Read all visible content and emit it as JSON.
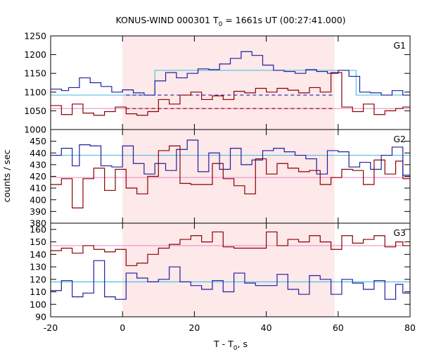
{
  "chart_data": {
    "type": "line",
    "title": "KONUS-WIND 000301 T",
    "title_sub": "0",
    "title_rest": " = 1661s UT (00:27:41.000)",
    "xlabel_main": "T - T",
    "xlabel_sub": "0",
    "xlabel_rest": ", s",
    "ylabel": "counts / sec",
    "xlim": [
      -20,
      80
    ],
    "x_ticks": [
      -20,
      0,
      20,
      40,
      60,
      80
    ],
    "interval": [
      0,
      59
    ],
    "colors": {
      "blue": "#1f1f9f",
      "red": "#8b0000",
      "cyan": "#54c0e0",
      "pink": "#ee90c8",
      "shade": "#fde8ea"
    },
    "panels": [
      {
        "label": "G1",
        "ylim": [
          1000,
          1250
        ],
        "y_ticks": [
          1000,
          1050,
          1100,
          1150,
          1200,
          1250
        ],
        "blue_edges": [
          -20,
          -17,
          -15,
          -12,
          -9,
          -6,
          -3,
          0,
          3,
          6,
          9,
          12,
          15,
          18,
          21,
          24,
          27,
          30,
          33,
          36,
          39,
          42,
          45,
          48,
          51,
          54,
          57,
          60,
          63,
          66,
          69,
          72,
          75,
          78,
          80
        ],
        "blue_values": [
          1108,
          1104,
          1112,
          1138,
          1125,
          1115,
          1100,
          1106,
          1098,
          1092,
          1130,
          1152,
          1138,
          1150,
          1162,
          1160,
          1175,
          1190,
          1208,
          1198,
          1172,
          1158,
          1155,
          1150,
          1160,
          1155,
          1150,
          1158,
          1142,
          1100,
          1098,
          1092,
          1104,
          1092
        ],
        "red_edges": [
          -20,
          -17,
          -14,
          -11,
          -8,
          -5,
          -2,
          1,
          4,
          7,
          10,
          13,
          16,
          19,
          22,
          25,
          28,
          31,
          34,
          37,
          40,
          43,
          46,
          49,
          52,
          55,
          58,
          61,
          64,
          67,
          70,
          73,
          76,
          78,
          80
        ],
        "red_values": [
          1064,
          1040,
          1068,
          1044,
          1038,
          1048,
          1060,
          1042,
          1038,
          1048,
          1080,
          1068,
          1092,
          1100,
          1080,
          1090,
          1080,
          1102,
          1098,
          1110,
          1100,
          1110,
          1105,
          1098,
          1112,
          1100,
          1152,
          1060,
          1048,
          1068,
          1040,
          1050,
          1056,
          1060
        ],
        "cyan_level": 1092,
        "cyan_box": {
          "x0": 9,
          "x1": 65,
          "level": 1158
        },
        "cyan_dash": {
          "x0": 60,
          "x1": 80,
          "level": 1092
        },
        "pink_level": 1056,
        "red_dash": {
          "x0": 1,
          "x1": 59,
          "level": 1056
        },
        "blue_dash": {
          "x0": 1,
          "x1": 59,
          "level": 1092
        }
      },
      {
        "label": "G2",
        "ylim": [
          380,
          460
        ],
        "y_ticks": [
          380,
          390,
          400,
          410,
          420,
          430,
          440,
          450
        ],
        "blue_edges": [
          -20,
          -17,
          -14,
          -12,
          -9,
          -6,
          -3,
          0,
          3,
          6,
          9,
          12,
          15,
          18,
          21,
          24,
          27,
          30,
          33,
          36,
          39,
          42,
          45,
          48,
          51,
          54,
          57,
          60,
          63,
          66,
          69,
          72,
          75,
          78,
          80
        ],
        "blue_values": [
          438,
          444,
          429,
          447,
          446,
          429,
          428,
          446,
          431,
          422,
          431,
          425,
          443,
          451,
          424,
          440,
          426,
          444,
          430,
          434,
          442,
          444,
          441,
          438,
          435,
          422,
          442,
          441,
          428,
          432,
          426,
          438,
          445,
          421
        ],
        "red_edges": [
          -20,
          -17,
          -14,
          -11,
          -8,
          -5,
          -2,
          1,
          4,
          7,
          10,
          13,
          16,
          19,
          22,
          25,
          28,
          31,
          34,
          37,
          40,
          43,
          46,
          49,
          52,
          55,
          58,
          61,
          64,
          67,
          70,
          73,
          76,
          78,
          80
        ],
        "red_values": [
          413,
          418,
          393,
          418,
          427,
          408,
          426,
          410,
          405,
          420,
          442,
          446,
          414,
          413,
          413,
          431,
          418,
          412,
          405,
          435,
          422,
          431,
          427,
          424,
          425,
          413,
          419,
          426,
          425,
          413,
          434,
          422,
          433,
          418
        ],
        "cyan_level": 438,
        "pink_level": 419
      },
      {
        "label": "G3",
        "ylim": [
          90,
          165
        ],
        "y_ticks": [
          90,
          100,
          110,
          120,
          130,
          140,
          150,
          160
        ],
        "blue_edges": [
          -20,
          -17,
          -14,
          -11,
          -8,
          -5,
          -2,
          1,
          4,
          7,
          10,
          13,
          16,
          19,
          22,
          25,
          28,
          31,
          34,
          37,
          40,
          43,
          46,
          49,
          52,
          55,
          58,
          61,
          64,
          67,
          70,
          73,
          76,
          78,
          80
        ],
        "blue_values": [
          111,
          119,
          106,
          109,
          135,
          106,
          104,
          125,
          121,
          118,
          120,
          130,
          118,
          115,
          112,
          119,
          110,
          125,
          117,
          115,
          115,
          124,
          112,
          108,
          123,
          120,
          108,
          120,
          117,
          112,
          119,
          104,
          116,
          109
        ],
        "red_edges": [
          -20,
          -17,
          -14,
          -11,
          -8,
          -5,
          -2,
          1,
          4,
          7,
          10,
          13,
          16,
          19,
          22,
          25,
          28,
          31,
          34,
          37,
          40,
          43,
          46,
          49,
          52,
          55,
          58,
          61,
          64,
          67,
          70,
          73,
          76,
          78,
          80
        ],
        "red_values": [
          143,
          145,
          141,
          147,
          144,
          142,
          144,
          131,
          133,
          140,
          145,
          148,
          152,
          155,
          150,
          158,
          146,
          145,
          145,
          145,
          158,
          147,
          152,
          150,
          155,
          150,
          144,
          155,
          149,
          152,
          155,
          146,
          150,
          147
        ],
        "cyan_level": 118,
        "pink_level": 147
      }
    ]
  }
}
